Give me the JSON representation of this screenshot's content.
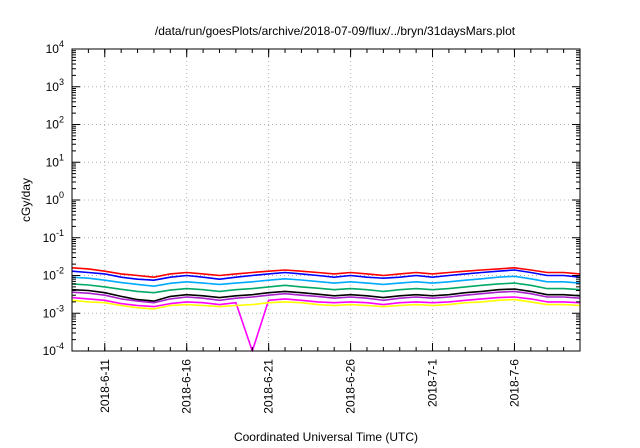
{
  "chart_data": {
    "type": "line",
    "title": "/data/run/goesPlots/archive/2018-07-09/flux/../bryn/31daysMars.plot",
    "xlabel": "Coordinated Universal Time (UTC)",
    "ylabel": "cGy/day",
    "y_scale": "log",
    "ylim": [
      0.0001,
      10000
    ],
    "xlim": [
      "2018-06-09",
      "2018-07-10"
    ],
    "grid": true,
    "x_ticks": [
      "2018-6-11",
      "2018-6-16",
      "2018-6-21",
      "2018-6-26",
      "2018-7-1",
      "2018-7-6"
    ],
    "y_ticks": [
      {
        "base": "10",
        "exp": "-4"
      },
      {
        "base": "10",
        "exp": "-3"
      },
      {
        "base": "10",
        "exp": "-2"
      },
      {
        "base": "10",
        "exp": "-1"
      },
      {
        "base": "10",
        "exp": "0"
      },
      {
        "base": "10",
        "exp": "1"
      },
      {
        "base": "10",
        "exp": "2"
      },
      {
        "base": "10",
        "exp": "3"
      },
      {
        "base": "10",
        "exp": "4"
      }
    ],
    "x": [
      "2018-06-09",
      "2018-06-10",
      "2018-06-11",
      "2018-06-12",
      "2018-06-13",
      "2018-06-14",
      "2018-06-15",
      "2018-06-16",
      "2018-06-17",
      "2018-06-18",
      "2018-06-19",
      "2018-06-20",
      "2018-06-21",
      "2018-06-22",
      "2018-06-23",
      "2018-06-24",
      "2018-06-25",
      "2018-06-26",
      "2018-06-27",
      "2018-06-28",
      "2018-06-29",
      "2018-06-30",
      "2018-07-01",
      "2018-07-02",
      "2018-07-03",
      "2018-07-04",
      "2018-07-05",
      "2018-07-06",
      "2018-07-07",
      "2018-07-08",
      "2018-07-09",
      "2018-07-10"
    ],
    "series": [
      {
        "color": "#ff0000",
        "values": [
          0.016,
          0.015,
          0.013,
          0.011,
          0.01,
          0.009,
          0.011,
          0.012,
          0.011,
          0.01,
          0.011,
          0.012,
          0.013,
          0.014,
          0.013,
          0.012,
          0.011,
          0.012,
          0.011,
          0.01,
          0.011,
          0.012,
          0.011,
          0.012,
          0.013,
          0.014,
          0.015,
          0.016,
          0.014,
          0.012,
          0.012,
          0.011
        ]
      },
      {
        "color": "#0000ff",
        "values": [
          0.013,
          0.012,
          0.011,
          0.009,
          0.008,
          0.0075,
          0.009,
          0.01,
          0.009,
          0.008,
          0.009,
          0.01,
          0.011,
          0.012,
          0.011,
          0.01,
          0.009,
          0.01,
          0.009,
          0.0085,
          0.009,
          0.01,
          0.009,
          0.01,
          0.011,
          0.012,
          0.013,
          0.014,
          0.012,
          0.01,
          0.01,
          0.009
        ]
      },
      {
        "color": "#00aaff",
        "values": [
          0.009,
          0.0085,
          0.0075,
          0.0065,
          0.0058,
          0.0052,
          0.0062,
          0.0068,
          0.0063,
          0.0058,
          0.0063,
          0.0068,
          0.0075,
          0.0082,
          0.0076,
          0.0069,
          0.0063,
          0.0068,
          0.0063,
          0.0058,
          0.0063,
          0.0068,
          0.0063,
          0.0068,
          0.0075,
          0.0082,
          0.009,
          0.0095,
          0.0082,
          0.0068,
          0.0068,
          0.0063
        ]
      },
      {
        "color": "#00aa66",
        "values": [
          0.006,
          0.0056,
          0.005,
          0.0043,
          0.0038,
          0.0035,
          0.0041,
          0.0045,
          0.0042,
          0.0038,
          0.0042,
          0.0045,
          0.005,
          0.0055,
          0.005,
          0.0046,
          0.0042,
          0.0045,
          0.0042,
          0.0038,
          0.0042,
          0.0045,
          0.0042,
          0.0045,
          0.005,
          0.0055,
          0.006,
          0.0063,
          0.0055,
          0.0045,
          0.0045,
          0.0042
        ]
      },
      {
        "color": "#000000",
        "values": [
          0.0042,
          0.004,
          0.0035,
          0.0028,
          0.0023,
          0.0021,
          0.0028,
          0.0031,
          0.0029,
          0.0026,
          0.0029,
          0.0031,
          0.0035,
          0.0038,
          0.0035,
          0.0032,
          0.0029,
          0.0031,
          0.0029,
          0.0026,
          0.0029,
          0.0031,
          0.0029,
          0.0031,
          0.0035,
          0.0038,
          0.0042,
          0.0044,
          0.0038,
          0.0031,
          0.0031,
          0.0029
        ]
      },
      {
        "color": "#aa22cc",
        "values": [
          0.0036,
          0.0034,
          0.003,
          0.0024,
          0.0021,
          0.0019,
          0.0024,
          0.0027,
          0.0025,
          0.0022,
          0.0025,
          0.0027,
          0.003,
          0.0033,
          0.003,
          0.0028,
          0.0025,
          0.0027,
          0.0025,
          0.0022,
          0.0025,
          0.0027,
          0.0025,
          0.0027,
          0.003,
          0.0033,
          0.0036,
          0.0038,
          0.0033,
          0.0027,
          0.0027,
          0.0025
        ]
      },
      {
        "color": "#ff00ff",
        "values": [
          0.0026,
          0.0024,
          0.0022,
          0.0018,
          0.0016,
          0.0015,
          0.0018,
          0.002,
          0.0019,
          0.0017,
          0.0019,
          0.0001,
          0.0022,
          0.0024,
          0.0022,
          0.002,
          0.0019,
          0.002,
          0.0019,
          0.0017,
          0.0019,
          0.002,
          0.0019,
          0.002,
          0.0022,
          0.0024,
          0.0026,
          0.0027,
          0.0024,
          0.002,
          0.002,
          0.0019
        ]
      },
      {
        "color": "#ffff00",
        "values": [
          0.0022,
          0.002,
          0.0019,
          0.0016,
          0.0014,
          0.0013,
          0.0016,
          0.0017,
          0.0016,
          0.0015,
          0.0016,
          0.0017,
          0.0019,
          0.002,
          0.0019,
          0.0017,
          0.0016,
          0.0017,
          0.0016,
          0.0015,
          0.0016,
          0.0017,
          0.0016,
          0.0017,
          0.0019,
          0.002,
          0.0022,
          0.0023,
          0.002,
          0.0017,
          0.0017,
          0.0016
        ]
      }
    ]
  }
}
